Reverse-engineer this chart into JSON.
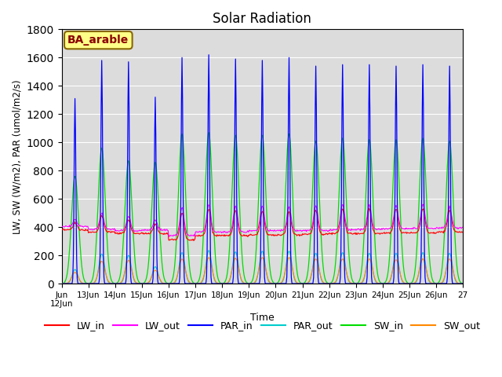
{
  "title": "Solar Radiation",
  "xlabel": "Time",
  "ylabel": "LW, SW (W/m2), PAR (umol/m2/s)",
  "ylim": [
    0,
    1800
  ],
  "annotation": "BA_arable",
  "colors": {
    "LW_in": "#ff0000",
    "LW_out": "#ff00ff",
    "PAR_in": "#0000ff",
    "PAR_out": "#00cccc",
    "SW_in": "#00dd00",
    "SW_out": "#ff8800"
  },
  "start_day": 12,
  "n_days": 15,
  "background_color": "#dcdcdc",
  "grid_color": "#ffffff",
  "figsize": [
    6.4,
    4.8
  ],
  "dpi": 100,
  "par_in_peaks": [
    1310,
    1580,
    1570,
    1320,
    1600,
    1620,
    1590,
    1580,
    1600,
    1540,
    1550,
    1550,
    1540,
    1550,
    1540
  ],
  "sw_in_peaks": [
    760,
    960,
    870,
    860,
    1060,
    1070,
    1050,
    1050,
    1060,
    1010,
    1030,
    1020,
    1020,
    1030,
    1010
  ],
  "sw_out_peaks": [
    80,
    160,
    165,
    95,
    175,
    185,
    180,
    185,
    185,
    175,
    175,
    175,
    170,
    175,
    175
  ],
  "par_out_peaks": [
    100,
    210,
    200,
    120,
    220,
    235,
    225,
    230,
    230,
    215,
    220,
    215,
    215,
    220,
    215
  ],
  "lw_in_base": [
    380,
    365,
    355,
    355,
    310,
    340,
    340,
    345,
    345,
    350,
    355,
    355,
    360,
    360,
    365
  ],
  "lw_in_peaks": [
    430,
    480,
    450,
    420,
    500,
    530,
    520,
    510,
    510,
    520,
    530,
    530,
    530,
    530,
    520
  ],
  "lw_out_base": [
    405,
    385,
    375,
    380,
    340,
    365,
    365,
    375,
    375,
    375,
    380,
    385,
    390,
    390,
    395
  ],
  "lw_out_peaks": [
    455,
    500,
    475,
    450,
    540,
    560,
    550,
    550,
    545,
    550,
    560,
    555,
    555,
    560,
    545
  ]
}
